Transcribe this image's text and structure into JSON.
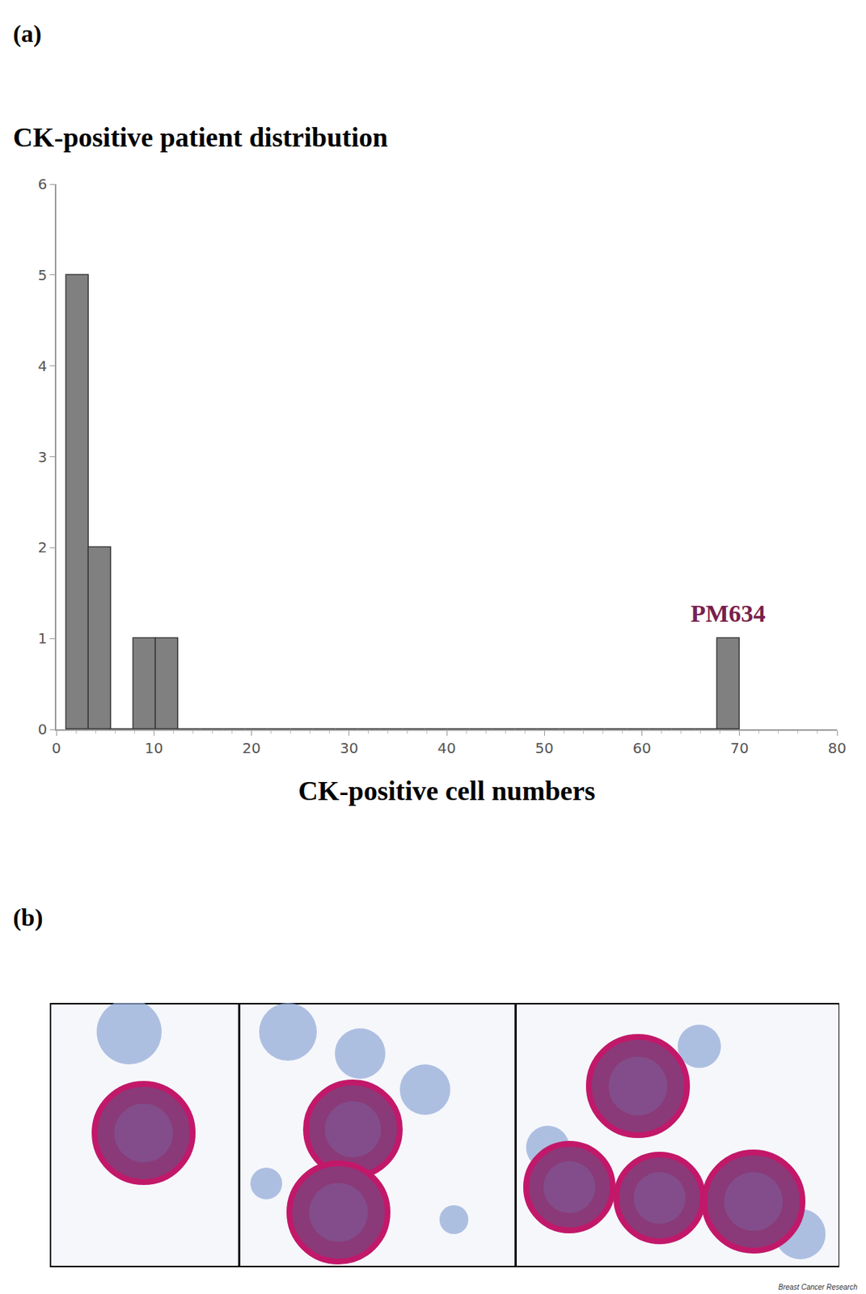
{
  "panel_labels": [
    "(a)",
    "(b)"
  ],
  "footer": "Breast Cancer Research",
  "chart_data": {
    "type": "histogram",
    "title": "CK-positive patient distribution",
    "x_label": "CK-positive cell numbers",
    "bins": [
      1.0,
      3.3,
      5.6,
      7.9,
      10.2,
      12.5,
      14.8,
      17.1,
      19.4,
      21.7,
      24.0,
      26.3,
      28.6,
      30.9,
      33.2,
      35.5,
      37.8,
      40.1,
      42.4,
      44.7,
      47.0,
      49.3,
      51.6,
      53.9,
      56.2,
      58.5,
      60.8,
      63.1,
      65.4,
      67.7,
      70.0
    ],
    "values": [
      5,
      2,
      0,
      1,
      1,
      0,
      0,
      0,
      0,
      0,
      0,
      0,
      0,
      0,
      0,
      0,
      0,
      0,
      0,
      0,
      0,
      0,
      0,
      0,
      0,
      0,
      0,
      0,
      0,
      1
    ],
    "color": "#808080",
    "xlim": [
      0,
      80
    ],
    "xticks": [
      0,
      10,
      20,
      30,
      40,
      50,
      60,
      70,
      80
    ],
    "ylim": [
      0,
      6
    ],
    "yticks": [
      0,
      1,
      2,
      3,
      4,
      5,
      6
    ],
    "grid": false,
    "annotations": [
      {
        "text": "PM634",
        "x": 68.85,
        "y": 1
      }
    ]
  }
}
